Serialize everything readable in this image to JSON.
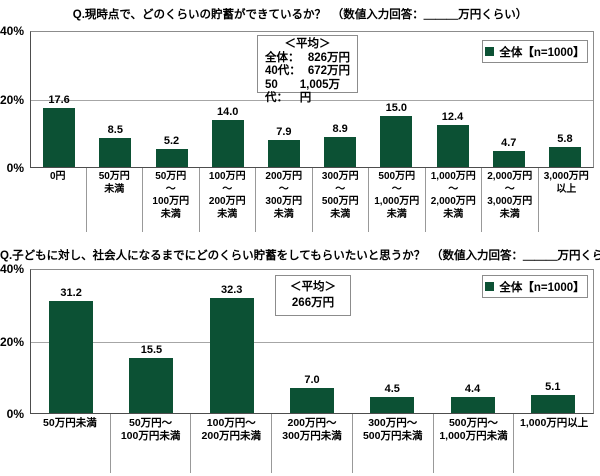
{
  "colors": {
    "bar_green": "#0C5134",
    "gridline": "#a6a6a6",
    "axis": "#4d4d4d",
    "box_border": "#8c8c8c"
  },
  "chart_data": [
    {
      "type": "bar",
      "title": "Q.現時点で、どのくらいの貯蓄ができているか？　（数値入力回答：＿＿＿万円くらい）",
      "legend": "全体【n=1000】",
      "bar_color": "#0C5134",
      "ylim": [
        0,
        40
      ],
      "yticks": [
        "40%",
        "20%",
        "0%"
      ],
      "grid": "on",
      "categories": [
        "0円",
        "50万円\n未満",
        "50万円\n〜\n100万円\n未満",
        "100万円\n〜\n200万円\n未満",
        "200万円\n〜\n300万円\n未満",
        "300万円\n〜\n500万円\n未満",
        "500万円\n〜\n1,000万円\n未満",
        "1,000万円\n〜\n2,000万円\n未満",
        "2,000万円\n〜\n3,000万円\n未満",
        "3,000万円\n以上"
      ],
      "values": [
        17.6,
        8.5,
        5.2,
        14.0,
        7.9,
        8.9,
        15.0,
        12.4,
        4.7,
        5.8
      ],
      "average": {
        "heading": "＜平均＞",
        "rows": [
          {
            "label": "全体：",
            "value": "826万円"
          },
          {
            "label": "40代：",
            "value": "672万円"
          },
          {
            "label": "50代：",
            "value": "1,005万円"
          }
        ]
      }
    },
    {
      "type": "bar",
      "title": "Q.子どもに対し、社会人になるまでにどのくらい貯蓄をしてもらいたいと思うか？　（数値入力回答：＿＿＿万円くらい）",
      "legend": "全体【n=1000】",
      "bar_color": "#0C5134",
      "ylim": [
        0,
        40
      ],
      "yticks": [
        "40%",
        "20%",
        "0%"
      ],
      "grid": "on",
      "categories": [
        "50万円未満",
        "50万円〜\n100万円未満",
        "100万円〜\n200万円未満",
        "200万円〜\n300万円未満",
        "300万円〜\n500万円未満",
        "500万円〜\n1,000万円未満",
        "1,000万円以上"
      ],
      "values": [
        31.2,
        15.5,
        32.3,
        7.0,
        4.5,
        4.4,
        5.1
      ],
      "average": {
        "heading": "＜平均＞",
        "rows": [
          {
            "label": "",
            "value": "266万円"
          }
        ]
      }
    }
  ]
}
